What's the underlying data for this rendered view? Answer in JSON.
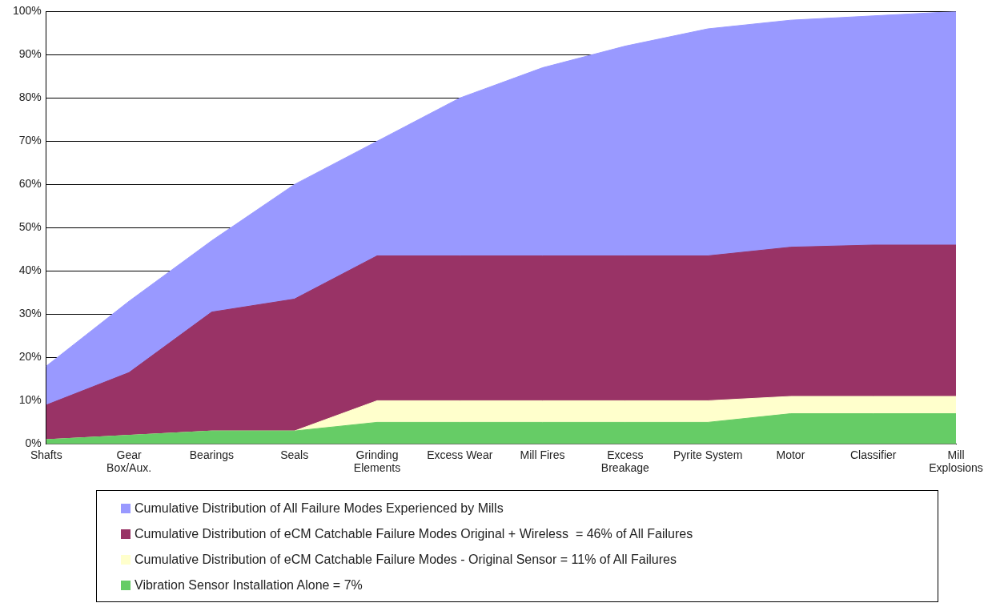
{
  "chart_data": {
    "type": "area",
    "categories": [
      "Shafts",
      "Gear\nBox/Aux.",
      "Bearings",
      "Seals",
      "Grinding\nElements",
      "Excess Wear",
      "Mill Fires",
      "Excess\nBreakage",
      "Pyrite System",
      "Motor",
      "Classifier",
      "Mill\nExplosions"
    ],
    "series": [
      {
        "name": "Cumulative Distribution of All Failure Modes Experienced by Mills",
        "color": "#9999ff",
        "values": [
          18,
          33,
          47,
          60,
          70,
          80,
          87,
          92,
          96,
          98,
          99,
          100
        ]
      },
      {
        "name": "Cumulative Distribution of eCM Catchable Failure Modes Original + Wireless  = 46% of All Failures",
        "color": "#993366",
        "values": [
          9,
          16.5,
          30.5,
          33.5,
          43.5,
          43.5,
          43.5,
          43.5,
          43.5,
          45.5,
          46,
          46
        ]
      },
      {
        "name": "Cumulative Distribution of eCM Catchable Failure Modes - Original Sensor = 11% of All Failures",
        "color": "#ffffcc",
        "values": [
          1,
          2,
          3,
          3,
          10,
          10,
          10,
          10,
          10,
          11,
          11,
          11
        ]
      },
      {
        "name": "Vibration Sensor Installation Alone = 7%",
        "color": "#66cc66",
        "values": [
          1,
          2,
          3,
          3,
          5,
          5,
          5,
          5,
          5,
          7,
          7,
          7
        ]
      }
    ],
    "ylim": [
      0,
      100
    ],
    "yticks": [
      {
        "value": 0,
        "label": "0%"
      },
      {
        "value": 10,
        "label": "10%"
      },
      {
        "value": 20,
        "label": "20%"
      },
      {
        "value": 30,
        "label": "30%"
      },
      {
        "value": 40,
        "label": "40%"
      },
      {
        "value": 50,
        "label": "50%"
      },
      {
        "value": 60,
        "label": "60%"
      },
      {
        "value": 70,
        "label": "70%"
      },
      {
        "value": 80,
        "label": "80%"
      },
      {
        "value": 90,
        "label": "90%"
      },
      {
        "value": 100,
        "label": "100%"
      }
    ],
    "grid": "y",
    "legend": "bottom",
    "marker": "none"
  }
}
